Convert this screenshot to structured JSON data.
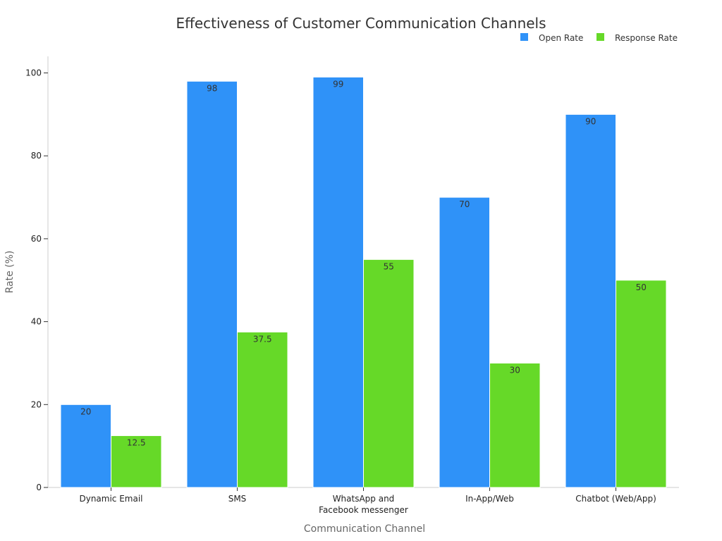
{
  "chart_data": {
    "type": "bar",
    "title": "Effectiveness of Customer Communication Channels",
    "xlabel": "Communication Channel",
    "ylabel": "Rate (%)",
    "categories": [
      [
        "Dynamic Email"
      ],
      [
        "SMS"
      ],
      [
        "WhatsApp and",
        "Facebook messenger"
      ],
      [
        "In-App/Web"
      ],
      [
        "Chatbot (Web/App)"
      ]
    ],
    "series": [
      {
        "name": "Open Rate",
        "color": "#2f92f8",
        "values": [
          20,
          98,
          99,
          70,
          90
        ]
      },
      {
        "name": "Response Rate",
        "color": "#66d928",
        "values": [
          12.5,
          37.5,
          55,
          30,
          50
        ]
      }
    ],
    "ylim": [
      0,
      104
    ],
    "yticks": [
      0,
      20,
      40,
      60,
      80,
      100
    ],
    "grid": false,
    "legend_position": "top-right"
  }
}
